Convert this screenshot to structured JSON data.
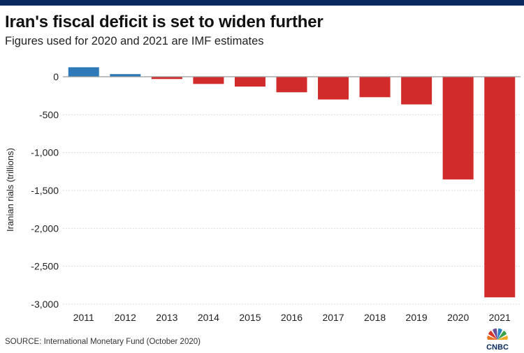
{
  "header": {
    "title": "Iran's fiscal deficit is set to widen further",
    "subtitle": "Figures used for 2020 and 2021 are IMF estimates"
  },
  "footer": {
    "source": "SOURCE: International Monetary Fund (October 2020)",
    "logo_text": "CNBC"
  },
  "colors": {
    "positive": "#2e7ab8",
    "negative": "#d12b2b",
    "gridline": "#d9d9d9",
    "zero_line": "#9a9a9a",
    "top_bar": "#0a2a5e"
  },
  "chart_data": {
    "type": "bar",
    "title": "Iran's fiscal deficit is set to widen further",
    "subtitle": "Figures used for 2020 and 2021 are IMF estimates",
    "xlabel": "",
    "ylabel": "Iranian rials (trillions)",
    "categories": [
      "2011",
      "2012",
      "2013",
      "2014",
      "2015",
      "2016",
      "2017",
      "2018",
      "2019",
      "2020",
      "2021"
    ],
    "values": [
      125,
      35,
      -30,
      -95,
      -130,
      -205,
      -300,
      -270,
      -365,
      -1355,
      -2910
    ],
    "ylim": [
      -3000,
      200
    ],
    "yticks": [
      0,
      -500,
      -1000,
      -1500,
      -2000,
      -2500,
      -3000
    ],
    "ytick_labels": [
      "0",
      "-500",
      "-1,000",
      "-1,500",
      "-2,000",
      "-2,500",
      "-3,000"
    ],
    "grid": true,
    "legend": "none"
  }
}
